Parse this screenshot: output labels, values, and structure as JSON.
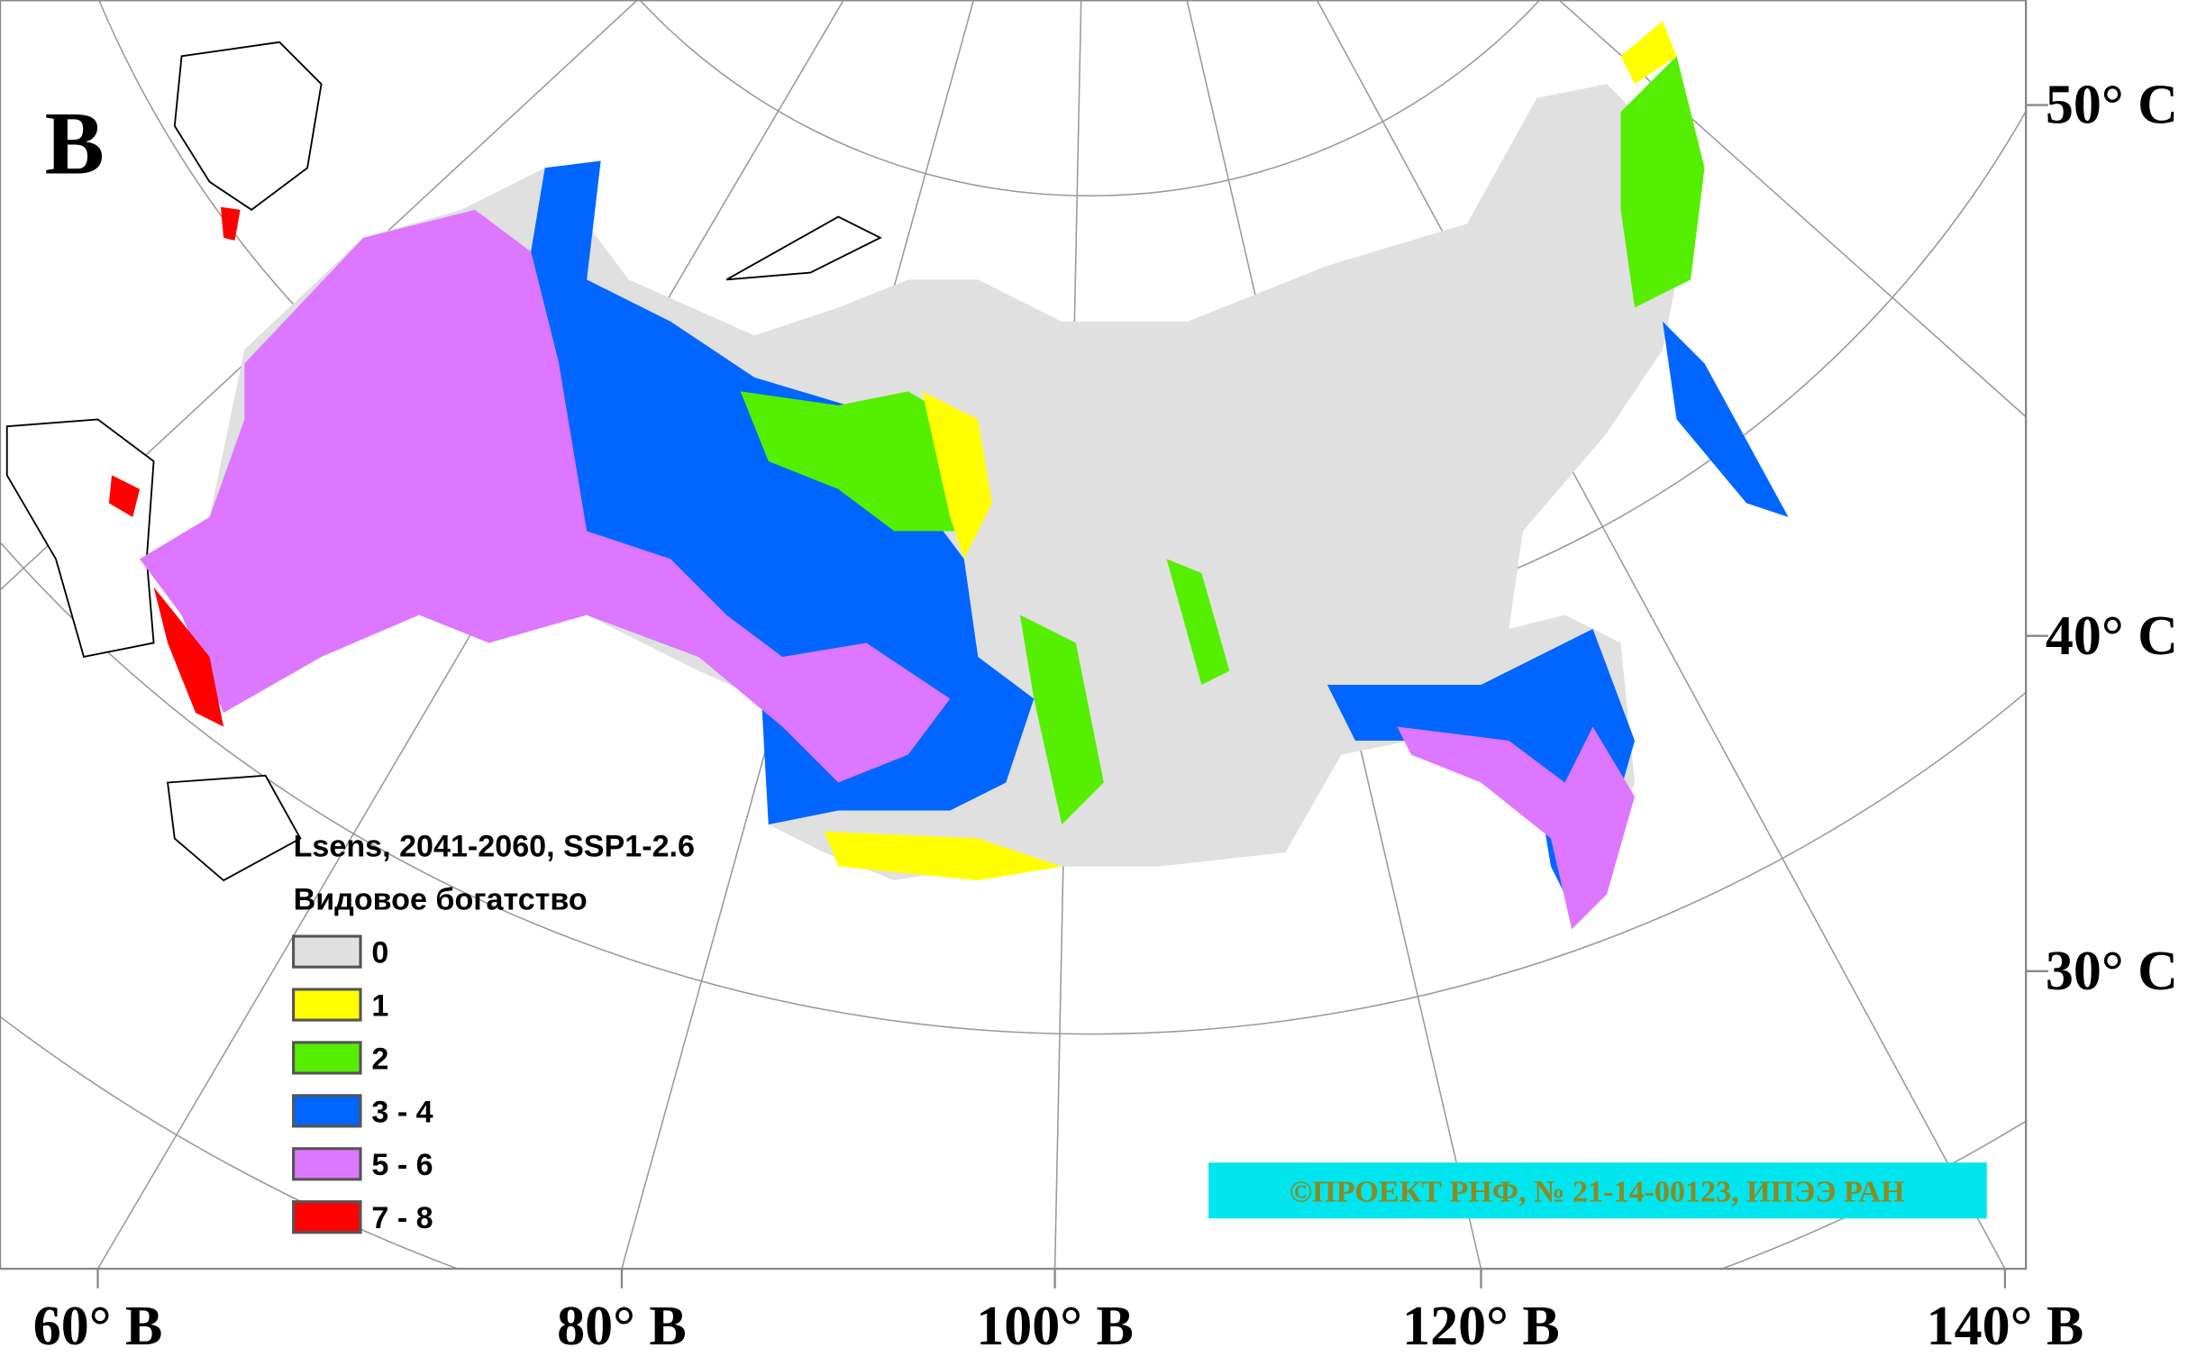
{
  "panel_label": "В",
  "legend": {
    "title": "Lsens, 2041-2060, SSP1-2.6",
    "subtitle": "Видовое богатство",
    "items": [
      {
        "label": "0",
        "color": "#e0e0e0"
      },
      {
        "label": "1",
        "color": "#ffff00"
      },
      {
        "label": "2",
        "color": "#55ee00"
      },
      {
        "label": "3 - 4",
        "color": "#0066ff"
      },
      {
        "label": "5 - 6",
        "color": "#dd77ff"
      },
      {
        "label": "7 - 8",
        "color": "#ff0000"
      }
    ]
  },
  "latitude_labels": [
    "50° С",
    "40° С",
    "30° С"
  ],
  "longitude_labels": [
    "60° В",
    "80° В",
    "100° В",
    "120° В",
    "140° В"
  ],
  "credit": "©ПРОЕКТ РНФ, № 21-14-00123, ИПЭЭ РАН"
}
